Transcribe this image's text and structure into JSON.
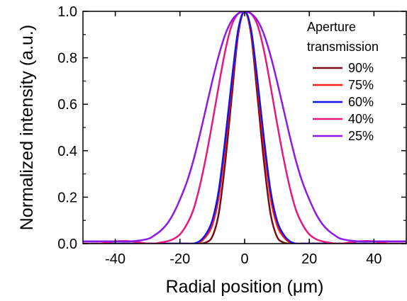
{
  "chart_data": {
    "type": "line",
    "xlabel": "Radial position (μm)",
    "ylabel": "Normalized intensity (a.u.)",
    "xlim": [
      -50,
      50
    ],
    "ylim": [
      0.0,
      1.0
    ],
    "xticks": [
      "-40",
      "-20",
      "0",
      "20",
      "40"
    ],
    "xtick_values": [
      -40,
      -20,
      0,
      20,
      40
    ],
    "yticks": [
      "0.0",
      "0.2",
      "0.4",
      "0.6",
      "0.8",
      "1.0"
    ],
    "ytick_values": [
      0.0,
      0.2,
      0.4,
      0.6,
      0.8,
      1.0
    ],
    "grid": false,
    "legend": {
      "title_line1": "Aperture",
      "title_line2": "transmission",
      "placement": "top-right"
    },
    "x": [
      -50,
      -45,
      -40,
      -35,
      -30,
      -28,
      -26,
      -24,
      -22,
      -20,
      -18,
      -16,
      -14,
      -12,
      -10,
      -8,
      -6,
      -4,
      -2,
      0,
      2,
      4,
      6,
      8,
      10,
      12,
      14,
      16,
      18,
      20,
      22,
      24,
      26,
      28,
      30,
      35,
      40,
      45,
      50
    ],
    "series": [
      {
        "name": "90%",
        "color": "#7a0a14",
        "values": [
          0.0,
          0.0,
          0.0,
          0.0,
          0.0,
          0.0,
          0.0,
          0.0,
          0.0,
          0.0,
          0.0,
          0.0,
          0.0,
          0.005,
          0.03,
          0.13,
          0.35,
          0.63,
          0.9,
          1.0,
          0.9,
          0.63,
          0.35,
          0.13,
          0.03,
          0.005,
          0.0,
          0.0,
          0.0,
          0.0,
          0.0,
          0.0,
          0.0,
          0.0,
          0.0,
          0.0,
          0.0,
          0.0,
          0.0
        ]
      },
      {
        "name": "75%",
        "color": "#ff1a1a",
        "values": [
          0.0,
          0.0,
          0.0,
          0.0,
          0.0,
          0.0,
          0.0,
          0.0,
          0.0,
          0.0,
          0.0,
          0.0,
          0.005,
          0.03,
          0.08,
          0.2,
          0.42,
          0.68,
          0.91,
          1.0,
          0.91,
          0.68,
          0.42,
          0.2,
          0.08,
          0.03,
          0.005,
          0.0,
          0.0,
          0.0,
          0.0,
          0.0,
          0.0,
          0.0,
          0.0,
          0.0,
          0.0,
          0.0,
          0.0
        ]
      },
      {
        "name": "60%",
        "color": "#1414e6",
        "values": [
          0.0,
          0.0,
          0.0,
          0.0,
          0.0,
          0.0,
          0.0,
          0.0,
          0.0,
          0.0,
          0.0,
          0.0,
          0.01,
          0.04,
          0.1,
          0.23,
          0.45,
          0.7,
          0.92,
          1.0,
          0.92,
          0.7,
          0.45,
          0.23,
          0.1,
          0.04,
          0.01,
          0.0,
          0.0,
          0.0,
          0.0,
          0.0,
          0.0,
          0.0,
          0.0,
          0.0,
          0.0,
          0.0,
          0.0
        ]
      },
      {
        "name": "40%",
        "color": "#e6197d",
        "values": [
          0.0,
          0.0,
          0.01,
          0.01,
          0.0,
          0.0,
          0.005,
          0.01,
          0.02,
          0.04,
          0.08,
          0.14,
          0.24,
          0.37,
          0.52,
          0.68,
          0.83,
          0.94,
          0.99,
          1.0,
          0.99,
          0.94,
          0.83,
          0.68,
          0.52,
          0.37,
          0.24,
          0.14,
          0.08,
          0.04,
          0.02,
          0.01,
          0.005,
          0.0,
          0.0,
          0.01,
          0.01,
          0.0,
          0.0
        ]
      },
      {
        "name": "25%",
        "color": "#8c1ae6",
        "values": [
          0.01,
          0.01,
          0.01,
          0.01,
          0.02,
          0.035,
          0.055,
          0.085,
          0.13,
          0.19,
          0.26,
          0.35,
          0.46,
          0.58,
          0.7,
          0.81,
          0.9,
          0.96,
          0.99,
          1.0,
          0.99,
          0.96,
          0.9,
          0.81,
          0.7,
          0.58,
          0.46,
          0.35,
          0.26,
          0.19,
          0.13,
          0.085,
          0.055,
          0.035,
          0.02,
          0.01,
          0.01,
          0.01,
          0.01
        ]
      }
    ]
  }
}
